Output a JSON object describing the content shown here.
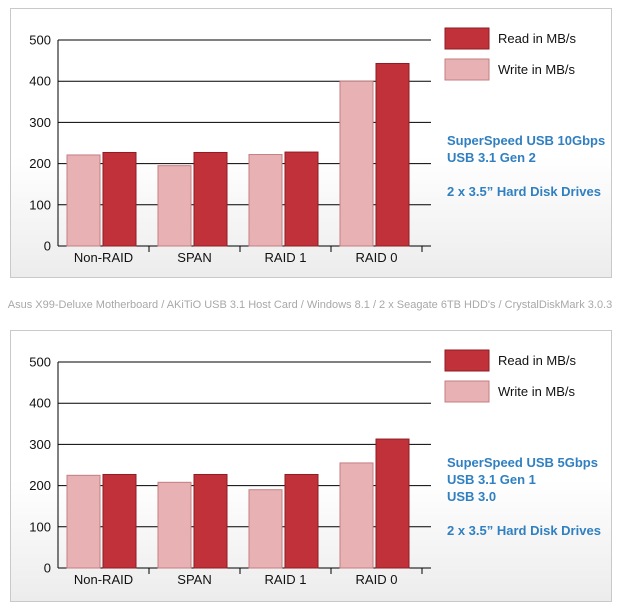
{
  "colors": {
    "read": "#c1313a",
    "read_stroke": "#8f1d24",
    "write": "#e8b1b3",
    "write_stroke": "#c47e82",
    "spec_text": "#2f7fc1",
    "grid": "#000000"
  },
  "caption": "Asus X99-Deluxe Motherboard / AKiTiO USB 3.1 Host Card / Windows 8.1 / 2 x Seagate 6TB HDD's / CrystalDiskMark 3.0.3",
  "chart_data": [
    {
      "type": "bar",
      "categories": [
        "Non-RAID",
        "SPAN",
        "RAID 1",
        "RAID 0"
      ],
      "series": [
        {
          "name": "Read in MB/s",
          "values": [
            227,
            227,
            228,
            443
          ]
        },
        {
          "name": "Write in MB/s",
          "values": [
            221,
            195,
            222,
            400
          ]
        }
      ],
      "ylim": [
        0,
        500
      ],
      "yticks": [
        "0",
        "100",
        "200",
        "300",
        "400",
        "500"
      ],
      "grid": true,
      "legend": "top-right",
      "spec": [
        "SuperSpeed USB 10Gbps",
        "USB 3.1 Gen 2",
        "",
        "2 x 3.5” Hard Disk Drives"
      ]
    },
    {
      "type": "bar",
      "categories": [
        "Non-RAID",
        "SPAN",
        "RAID 1",
        "RAID 0"
      ],
      "series": [
        {
          "name": "Read in MB/s",
          "values": [
            227,
            227,
            227,
            313
          ]
        },
        {
          "name": "Write in MB/s",
          "values": [
            225,
            208,
            190,
            255
          ]
        }
      ],
      "ylim": [
        0,
        500
      ],
      "yticks": [
        "0",
        "100",
        "200",
        "300",
        "400",
        "500"
      ],
      "grid": true,
      "legend": "top-right",
      "spec": [
        "SuperSpeed USB 5Gbps",
        "USB 3.1 Gen 1",
        "USB 3.0",
        "",
        "2 x 3.5” Hard Disk Drives"
      ]
    }
  ]
}
